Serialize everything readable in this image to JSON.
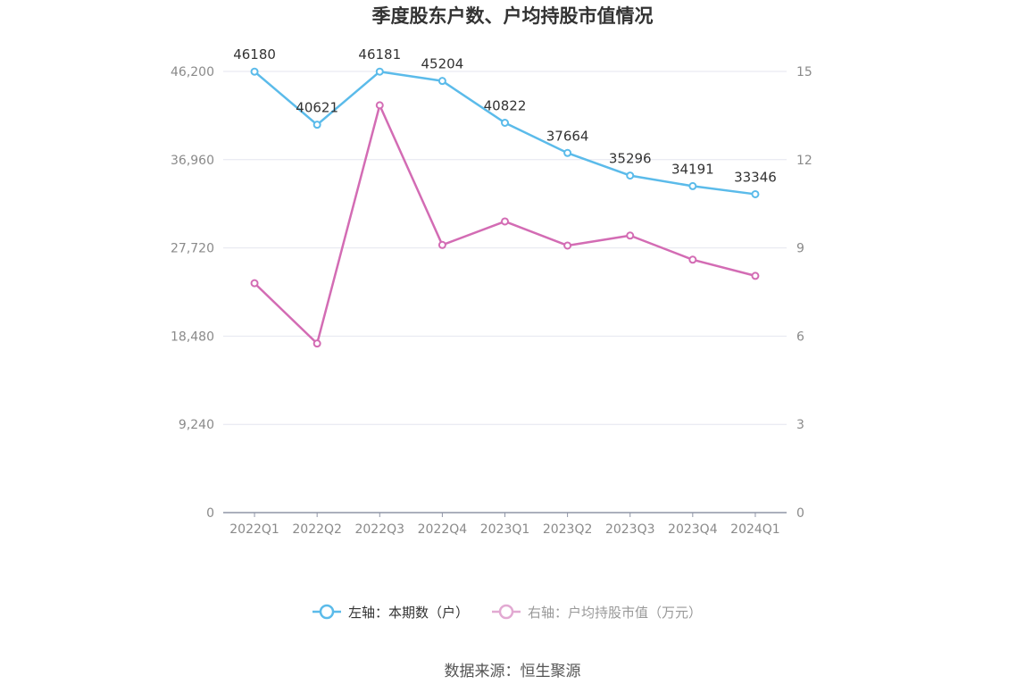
{
  "title": "季度股东户数、户均持股市值情况",
  "source": "数据来源：恒生聚源",
  "colors": {
    "left_series": "#5bbbea",
    "right_series": "#d36cb4",
    "grid": "#e4e6ef",
    "axis": "#8f95a6"
  },
  "chart_data": {
    "type": "line",
    "categories": [
      "2022Q1",
      "2022Q2",
      "2022Q3",
      "2022Q4",
      "2023Q1",
      "2023Q2",
      "2023Q3",
      "2023Q4",
      "2024Q1"
    ],
    "left_axis": {
      "ylim": [
        0,
        46200
      ],
      "ticks": [
        "0",
        "9,240",
        "18,480",
        "27,720",
        "36,960",
        "46,200"
      ]
    },
    "right_axis": {
      "ylim": [
        0,
        15
      ],
      "ticks": [
        "0",
        "3",
        "6",
        "9",
        "12",
        "15"
      ]
    },
    "series": [
      {
        "name": "左轴：本期数（户）",
        "axis": "left",
        "values": [
          46180,
          40621,
          46181,
          45204,
          40822,
          37664,
          35296,
          34191,
          33346
        ],
        "labels": [
          "46180",
          "40621",
          "46181",
          "45204",
          "40822",
          "37664",
          "35296",
          "34191",
          "33346"
        ]
      },
      {
        "name": "右轴：户均持股市值（万元）",
        "axis": "right",
        "values": [
          7.8,
          5.75,
          13.85,
          9.1,
          9.9,
          9.08,
          9.42,
          8.6,
          8.05
        ]
      }
    ],
    "grid": true,
    "legend": "bottom-center"
  }
}
